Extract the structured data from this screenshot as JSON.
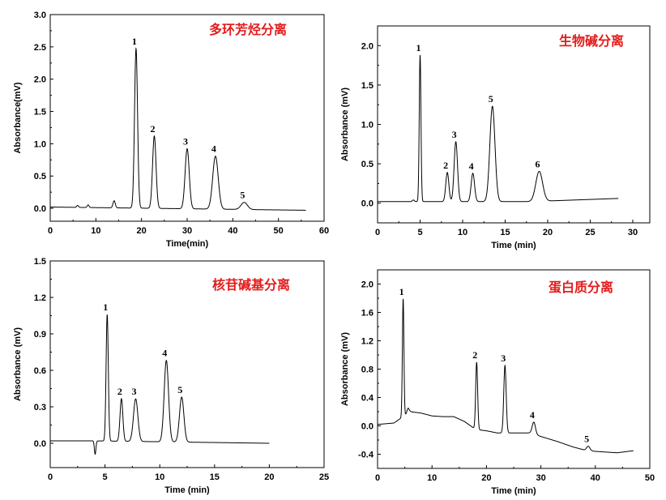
{
  "chart_data": [
    {
      "type": "line",
      "title": "多环芳烃分离",
      "title_color": "#e31c1c",
      "xlabel": "Time(min)",
      "ylabel": "Absorbance(mV)",
      "xlim": [
        0,
        60
      ],
      "ylim": [
        -0.2,
        3.0
      ],
      "xticks": [
        0,
        10,
        20,
        30,
        40,
        50,
        60
      ],
      "yticks": [
        0.0,
        0.5,
        1.0,
        1.5,
        2.0,
        2.5,
        3.0
      ],
      "ytick_labels": [
        "0.0",
        "0.5",
        "1.0",
        "1.5",
        "2.0",
        "2.5",
        "3.0"
      ],
      "trace_range": [
        0,
        56
      ],
      "baseline": [
        [
          0,
          0.02
        ],
        [
          56,
          -0.03
        ]
      ],
      "peaks": [
        {
          "label": "",
          "x": 6.0,
          "h": 0.03,
          "w": 0.2
        },
        {
          "label": "",
          "x": 8.3,
          "h": 0.04,
          "w": 0.2
        },
        {
          "label": "",
          "x": 14.0,
          "h": 0.11,
          "w": 0.25
        },
        {
          "label": "1",
          "x": 18.8,
          "h": 2.47,
          "w": 0.33
        },
        {
          "label": "2",
          "x": 22.8,
          "h": 1.12,
          "w": 0.38
        },
        {
          "label": "3",
          "x": 30.0,
          "h": 0.93,
          "w": 0.45
        },
        {
          "label": "4",
          "x": 36.2,
          "h": 0.82,
          "w": 0.6
        },
        {
          "label": "5",
          "x": 42.5,
          "h": 0.11,
          "w": 0.7
        }
      ]
    },
    {
      "type": "line",
      "title": "生物碱分离",
      "title_color": "#e31c1c",
      "xlabel": "Time (min)",
      "ylabel": "Absorbance (mV)",
      "xlim": [
        0,
        32
      ],
      "ylim": [
        -0.25,
        2.25
      ],
      "xticks": [
        0,
        5,
        10,
        15,
        20,
        25,
        30
      ],
      "yticks": [
        0.0,
        0.5,
        1.0,
        1.5,
        2.0
      ],
      "ytick_labels": [
        "0.0",
        "0.5",
        "1.0",
        "1.5",
        "2.0"
      ],
      "trace_range": [
        0,
        28.3
      ],
      "baseline": [
        [
          0,
          0.02
        ],
        [
          18,
          0.02
        ],
        [
          28.3,
          0.06
        ]
      ],
      "peaks": [
        {
          "label": "",
          "x": 4.2,
          "h": 0.02,
          "w": 0.12
        },
        {
          "label": "1",
          "x": 5.0,
          "h": 1.86,
          "w": 0.1
        },
        {
          "label": "2",
          "x": 8.2,
          "h": 0.37,
          "w": 0.18
        },
        {
          "label": "3",
          "x": 9.2,
          "h": 0.76,
          "w": 0.2
        },
        {
          "label": "4",
          "x": 11.2,
          "h": 0.36,
          "w": 0.2
        },
        {
          "label": "5",
          "x": 13.5,
          "h": 1.21,
          "w": 0.3
        },
        {
          "label": "6",
          "x": 19.0,
          "h": 0.38,
          "w": 0.4
        }
      ]
    },
    {
      "type": "line",
      "title": "核苷碱基分离",
      "title_color": "#e31c1c",
      "xlabel": "Time (min)",
      "ylabel": "Absorbance (mV)",
      "xlim": [
        0,
        25
      ],
      "ylim": [
        -0.2,
        1.5
      ],
      "xticks": [
        0,
        5,
        10,
        15,
        20,
        25
      ],
      "yticks": [
        0.0,
        0.3,
        0.6,
        0.9,
        1.2,
        1.5
      ],
      "ytick_labels": [
        "0.0",
        "0.3",
        "0.6",
        "0.9",
        "1.2",
        "1.5"
      ],
      "trace_range": [
        0,
        20
      ],
      "baseline": [
        [
          0,
          0.02
        ],
        [
          4,
          0.02
        ],
        [
          20,
          0.0
        ]
      ],
      "peaks": [
        {
          "label": "",
          "x": 4.1,
          "h": -0.11,
          "w": 0.07
        },
        {
          "label": "1",
          "x": 5.2,
          "h": 1.04,
          "w": 0.1
        },
        {
          "label": "2",
          "x": 6.5,
          "h": 0.35,
          "w": 0.13
        },
        {
          "label": "3",
          "x": 7.8,
          "h": 0.35,
          "w": 0.2
        },
        {
          "label": "4",
          "x": 10.6,
          "h": 0.67,
          "w": 0.2
        },
        {
          "label": "5",
          "x": 12.0,
          "h": 0.37,
          "w": 0.2
        }
      ]
    },
    {
      "type": "line",
      "title": "蛋白质分离",
      "title_color": "#e31c1c",
      "xlabel": "Time (min)",
      "ylabel": "Absorbance (mV)",
      "xlim": [
        0,
        50
      ],
      "ylim": [
        -0.6,
        2.2
      ],
      "xticks": [
        0,
        10,
        20,
        30,
        40,
        50
      ],
      "yticks": [
        -0.4,
        0.0,
        0.4,
        0.8,
        1.2,
        1.6,
        2.0
      ],
      "ytick_labels": [
        "-0.4",
        "0.0",
        "0.4",
        "0.8",
        "1.2",
        "1.6",
        "2.0"
      ],
      "trace_range": [
        0,
        47
      ],
      "baseline": [
        [
          0,
          0.02
        ],
        [
          3,
          0.04
        ],
        [
          6,
          0.2
        ],
        [
          8,
          0.18
        ],
        [
          10,
          0.14
        ],
        [
          12,
          0.13
        ],
        [
          14,
          0.13
        ],
        [
          16,
          0.06
        ],
        [
          18,
          -0.05
        ],
        [
          20,
          -0.07
        ],
        [
          22,
          -0.1
        ],
        [
          25,
          -0.1
        ],
        [
          28,
          -0.1
        ],
        [
          30,
          -0.15
        ],
        [
          33,
          -0.22
        ],
        [
          36,
          -0.3
        ],
        [
          38,
          -0.34
        ],
        [
          40,
          -0.36
        ],
        [
          44,
          -0.38
        ],
        [
          47,
          -0.35
        ]
      ],
      "peaks": [
        {
          "label": "1",
          "x": 4.7,
          "h": 1.66,
          "w": 0.14
        },
        {
          "label": "",
          "x": 5.6,
          "h": 0.07,
          "w": 0.2
        },
        {
          "label": "2",
          "x": 18.2,
          "h": 0.95,
          "w": 0.18
        },
        {
          "label": "3",
          "x": 23.4,
          "h": 0.95,
          "w": 0.22
        },
        {
          "label": "4",
          "x": 28.7,
          "h": 0.17,
          "w": 0.3
        },
        {
          "label": "5",
          "x": 38.7,
          "h": 0.06,
          "w": 0.3
        }
      ]
    }
  ]
}
